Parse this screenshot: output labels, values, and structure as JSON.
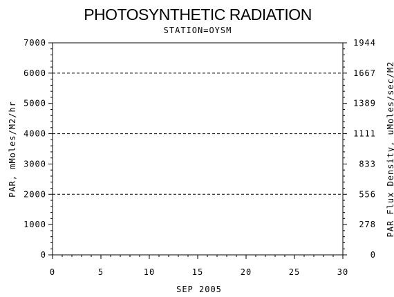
{
  "chart_data": {
    "type": "line",
    "title": "PHOTOSYNTHETIC RADIATION",
    "subtitle": "STATION=OYSM",
    "xlabel": "SEP 2005",
    "ylabel": "PAR, mMoles/M2/hr",
    "y2label": "PAR Flux Density, uMoles/sec/M2",
    "xlim": [
      0,
      30
    ],
    "ylim": [
      0,
      7000
    ],
    "x_ticks": [
      0,
      5,
      10,
      15,
      20,
      25,
      30
    ],
    "y_ticks": [
      0,
      1000,
      2000,
      3000,
      4000,
      5000,
      6000,
      7000
    ],
    "y2_ticks": [
      {
        "label": "0",
        "value": 0
      },
      {
        "label": "278",
        "value": 1000
      },
      {
        "label": "556",
        "value": 2000
      },
      {
        "label": "833",
        "value": 3000
      },
      {
        "label": "1111",
        "value": 4000
      },
      {
        "label": "1389",
        "value": 5000
      },
      {
        "label": "1667",
        "value": 6000
      },
      {
        "label": "1944",
        "value": 7000
      }
    ],
    "reference_lines_y": [
      2000,
      4000,
      6000
    ],
    "grid": false,
    "series": []
  }
}
